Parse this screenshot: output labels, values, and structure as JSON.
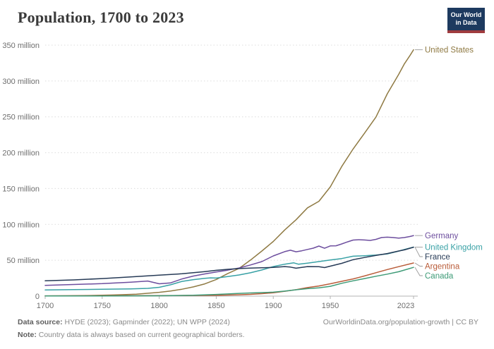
{
  "header": {
    "title": "Population, 1700 to 2023",
    "logo": {
      "line1": "Our World",
      "line2": "in Data",
      "bg": "#1d3a5f",
      "accent": "#a03c3f"
    }
  },
  "footer": {
    "source_label": "Data source:",
    "source_text": " HYDE (2023); Gapminder (2022); UN WPP (2024)",
    "link": "OurWorldinData.org/population-growth | CC BY",
    "note_label": "Note:",
    "note_text": " Country data is always based on current geographical borders."
  },
  "chart_data": {
    "type": "line",
    "title": "Population, 1700 to 2023",
    "xlabel": "",
    "ylabel": "",
    "xlim": [
      1700,
      2023
    ],
    "ylim": [
      0,
      350
    ],
    "units": "million",
    "grid": "horizontal-dotted",
    "legend_position": "end-of-line-labels-right",
    "grid_color": "#dcdcdc",
    "axis_color": "#b3b3b3",
    "tick_color": "#6e6e6e",
    "connector_color": "#9a9a9a",
    "x_ticks": [
      1700,
      1750,
      1800,
      1850,
      1900,
      1950,
      2023
    ],
    "y_ticks": [
      {
        "value": 0,
        "label": "0"
      },
      {
        "value": 50,
        "label": "50 million"
      },
      {
        "value": 100,
        "label": "100 million"
      },
      {
        "value": 150,
        "label": "150 million"
      },
      {
        "value": 200,
        "label": "200 million"
      },
      {
        "value": 250,
        "label": "250 million"
      },
      {
        "value": 300,
        "label": "300 million"
      },
      {
        "value": 350,
        "label": "350 million"
      }
    ],
    "series": [
      {
        "id": "united-states",
        "name": "United States",
        "color": "#8f7a43",
        "points": [
          [
            1700,
            0.25
          ],
          [
            1720,
            0.5
          ],
          [
            1740,
            0.9
          ],
          [
            1760,
            1.6
          ],
          [
            1780,
            2.8
          ],
          [
            1800,
            5.3
          ],
          [
            1810,
            7.2
          ],
          [
            1820,
            9.6
          ],
          [
            1830,
            12.9
          ],
          [
            1840,
            17.1
          ],
          [
            1850,
            23.2
          ],
          [
            1860,
            31.4
          ],
          [
            1870,
            38.6
          ],
          [
            1880,
            50.2
          ],
          [
            1890,
            62.9
          ],
          [
            1900,
            76.2
          ],
          [
            1910,
            92.2
          ],
          [
            1920,
            106.5
          ],
          [
            1930,
            123.1
          ],
          [
            1940,
            132.2
          ],
          [
            1950,
            152.3
          ],
          [
            1960,
            180.7
          ],
          [
            1970,
            205.1
          ],
          [
            1980,
            227.2
          ],
          [
            1990,
            249.6
          ],
          [
            2000,
            282.2
          ],
          [
            2010,
            309.3
          ],
          [
            2015,
            324.0
          ],
          [
            2020,
            335.9
          ],
          [
            2023,
            343.5
          ]
        ]
      },
      {
        "id": "germany",
        "name": "Germany",
        "color": "#6d4e9e",
        "points": [
          [
            1700,
            15.0
          ],
          [
            1725,
            16.2
          ],
          [
            1750,
            17.4
          ],
          [
            1775,
            19.5
          ],
          [
            1790,
            21.0
          ],
          [
            1800,
            17.2
          ],
          [
            1810,
            18.5
          ],
          [
            1820,
            24.0
          ],
          [
            1830,
            28.0
          ],
          [
            1840,
            31.0
          ],
          [
            1850,
            33.7
          ],
          [
            1860,
            36.2
          ],
          [
            1870,
            39.2
          ],
          [
            1880,
            43.5
          ],
          [
            1890,
            48.2
          ],
          [
            1900,
            56.0
          ],
          [
            1910,
            62.0
          ],
          [
            1915,
            64.0
          ],
          [
            1920,
            61.8
          ],
          [
            1925,
            63.2
          ],
          [
            1930,
            65.1
          ],
          [
            1935,
            66.9
          ],
          [
            1940,
            69.8
          ],
          [
            1945,
            66.8
          ],
          [
            1950,
            70.0
          ],
          [
            1955,
            70.2
          ],
          [
            1960,
            72.8
          ],
          [
            1965,
            75.6
          ],
          [
            1970,
            78.2
          ],
          [
            1975,
            78.7
          ],
          [
            1980,
            78.3
          ],
          [
            1985,
            77.7
          ],
          [
            1990,
            79.1
          ],
          [
            1995,
            81.7
          ],
          [
            2000,
            82.2
          ],
          [
            2005,
            81.7
          ],
          [
            2010,
            80.8
          ],
          [
            2015,
            81.7
          ],
          [
            2020,
            83.2
          ],
          [
            2023,
            84.5
          ]
        ]
      },
      {
        "id": "united-kingdom",
        "name": "United Kingdom",
        "color": "#38a1a5",
        "points": [
          [
            1700,
            8.6
          ],
          [
            1725,
            9.0
          ],
          [
            1750,
            9.5
          ],
          [
            1775,
            10.0
          ],
          [
            1790,
            10.8
          ],
          [
            1800,
            12.3
          ],
          [
            1810,
            15.8
          ],
          [
            1820,
            20.5
          ],
          [
            1830,
            23.0
          ],
          [
            1840,
            24.8
          ],
          [
            1845,
            25.5
          ],
          [
            1850,
            25.2
          ],
          [
            1860,
            27.2
          ],
          [
            1870,
            29.5
          ],
          [
            1880,
            32.5
          ],
          [
            1890,
            36.5
          ],
          [
            1900,
            41.2
          ],
          [
            1910,
            44.5
          ],
          [
            1918,
            46.4
          ],
          [
            1922,
            44.5
          ],
          [
            1930,
            46.0
          ],
          [
            1940,
            48.2
          ],
          [
            1950,
            50.3
          ],
          [
            1960,
            52.4
          ],
          [
            1970,
            55.6
          ],
          [
            1980,
            56.3
          ],
          [
            1990,
            57.2
          ],
          [
            2000,
            58.9
          ],
          [
            2010,
            62.8
          ],
          [
            2015,
            65.1
          ],
          [
            2023,
            68.3
          ]
        ]
      },
      {
        "id": "france",
        "name": "France",
        "color": "#263a56",
        "points": [
          [
            1700,
            21.4
          ],
          [
            1725,
            22.6
          ],
          [
            1750,
            24.5
          ],
          [
            1775,
            26.8
          ],
          [
            1800,
            29.2
          ],
          [
            1820,
            31.2
          ],
          [
            1840,
            34.2
          ],
          [
            1850,
            36.0
          ],
          [
            1860,
            37.4
          ],
          [
            1870,
            38.4
          ],
          [
            1880,
            39.0
          ],
          [
            1890,
            39.5
          ],
          [
            1900,
            40.0
          ],
          [
            1910,
            41.2
          ],
          [
            1915,
            40.5
          ],
          [
            1920,
            38.9
          ],
          [
            1930,
            41.2
          ],
          [
            1940,
            41.0
          ],
          [
            1945,
            39.8
          ],
          [
            1950,
            41.8
          ],
          [
            1960,
            45.7
          ],
          [
            1970,
            50.8
          ],
          [
            1980,
            53.9
          ],
          [
            1990,
            56.7
          ],
          [
            2000,
            59.4
          ],
          [
            2010,
            62.9
          ],
          [
            2015,
            64.5
          ],
          [
            2023,
            68.2
          ]
        ]
      },
      {
        "id": "argentina",
        "name": "Argentina",
        "color": "#b95c39",
        "points": [
          [
            1700,
            0.4
          ],
          [
            1750,
            0.5
          ],
          [
            1800,
            0.7
          ],
          [
            1850,
            1.1
          ],
          [
            1870,
            1.9
          ],
          [
            1880,
            2.5
          ],
          [
            1890,
            3.4
          ],
          [
            1900,
            4.7
          ],
          [
            1910,
            6.8
          ],
          [
            1920,
            8.9
          ],
          [
            1930,
            11.9
          ],
          [
            1940,
            14.2
          ],
          [
            1950,
            17.2
          ],
          [
            1960,
            20.6
          ],
          [
            1970,
            24.0
          ],
          [
            1980,
            28.1
          ],
          [
            1990,
            32.6
          ],
          [
            2000,
            37.1
          ],
          [
            2010,
            41.1
          ],
          [
            2023,
            46.2
          ]
        ]
      },
      {
        "id": "canada",
        "name": "Canada",
        "color": "#3e9b77",
        "points": [
          [
            1700,
            0.2
          ],
          [
            1750,
            0.3
          ],
          [
            1800,
            0.5
          ],
          [
            1830,
            1.2
          ],
          [
            1850,
            2.4
          ],
          [
            1870,
            3.8
          ],
          [
            1880,
            4.4
          ],
          [
            1890,
            4.9
          ],
          [
            1900,
            5.5
          ],
          [
            1910,
            7.0
          ],
          [
            1920,
            8.8
          ],
          [
            1930,
            10.4
          ],
          [
            1940,
            11.5
          ],
          [
            1950,
            13.7
          ],
          [
            1960,
            17.9
          ],
          [
            1970,
            21.3
          ],
          [
            1980,
            24.5
          ],
          [
            1990,
            27.7
          ],
          [
            2000,
            30.7
          ],
          [
            2010,
            34.0
          ],
          [
            2023,
            40.1
          ]
        ]
      }
    ]
  }
}
